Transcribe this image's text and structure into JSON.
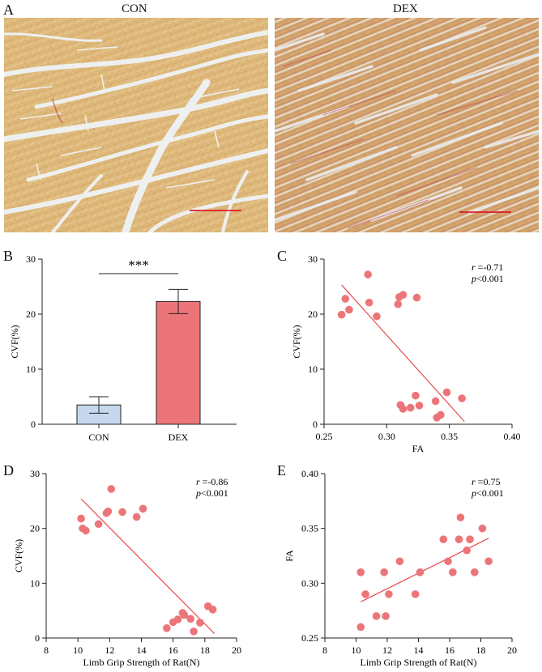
{
  "panels": {
    "a": {
      "letter": "A",
      "left_label": "CON",
      "right_label": "DEX"
    },
    "b": {
      "letter": "B"
    },
    "c": {
      "letter": "C"
    },
    "d": {
      "letter": "D"
    },
    "e": {
      "letter": "E"
    }
  },
  "colors": {
    "con_bar": "#c5d8ee",
    "dex_bar": "#ec7579",
    "point": "#ec7579",
    "fit_line": "#e84a4a",
    "scale_bar": "#d81b2a"
  },
  "chart_data": [
    {
      "id": "B",
      "type": "bar",
      "categories": [
        "CON",
        "DEX"
      ],
      "values": [
        3.5,
        22.3
      ],
      "errors": [
        1.5,
        2.2
      ],
      "ylabel": "CVF(%)",
      "xlabel": "",
      "ylim": [
        0,
        30
      ],
      "yticks": [
        0,
        10,
        20,
        30
      ],
      "significance": "***"
    },
    {
      "id": "C",
      "type": "scatter",
      "xlabel": "FA",
      "ylabel": "CVF(%)",
      "xlim": [
        0.25,
        0.4
      ],
      "ylim": [
        0,
        30
      ],
      "xticks": [
        0.25,
        0.3,
        0.35,
        0.4
      ],
      "yticks": [
        0,
        10,
        20,
        30
      ],
      "annotation_r": "=-0.71",
      "annotation_p": "<0.001",
      "points": [
        [
          0.264,
          19.9
        ],
        [
          0.267,
          22.8
        ],
        [
          0.27,
          20.8
        ],
        [
          0.285,
          27.2
        ],
        [
          0.286,
          22.1
        ],
        [
          0.292,
          19.6
        ],
        [
          0.309,
          21.8
        ],
        [
          0.31,
          23.1
        ],
        [
          0.313,
          23.5
        ],
        [
          0.324,
          23.0
        ],
        [
          0.311,
          3.5
        ],
        [
          0.313,
          2.8
        ],
        [
          0.319,
          3.0
        ],
        [
          0.323,
          5.2
        ],
        [
          0.326,
          3.4
        ],
        [
          0.339,
          4.2
        ],
        [
          0.34,
          1.2
        ],
        [
          0.343,
          1.7
        ],
        [
          0.348,
          5.8
        ],
        [
          0.36,
          4.7
        ]
      ],
      "fit": [
        [
          0.264,
          25.3
        ],
        [
          0.362,
          0.5
        ]
      ]
    },
    {
      "id": "D",
      "type": "scatter",
      "xlabel": "Limb Grip Strength of  Rat(N)",
      "ylabel": "CVF(%)",
      "xlim": [
        8,
        20
      ],
      "ylim": [
        0,
        30
      ],
      "xticks": [
        8,
        10,
        12,
        14,
        16,
        18,
        20
      ],
      "yticks": [
        0,
        10,
        20,
        30
      ],
      "annotation_r": "=-0.86",
      "annotation_p": "<0.001",
      "points": [
        [
          10.2,
          21.8
        ],
        [
          10.3,
          20.0
        ],
        [
          10.5,
          19.6
        ],
        [
          11.3,
          20.8
        ],
        [
          11.8,
          22.8
        ],
        [
          11.9,
          23.1
        ],
        [
          12.1,
          27.2
        ],
        [
          12.8,
          23.0
        ],
        [
          13.7,
          22.1
        ],
        [
          14.1,
          23.6
        ],
        [
          15.6,
          1.8
        ],
        [
          16.0,
          2.9
        ],
        [
          16.3,
          3.4
        ],
        [
          16.6,
          4.6
        ],
        [
          16.7,
          4.2
        ],
        [
          17.1,
          3.5
        ],
        [
          17.3,
          1.2
        ],
        [
          17.7,
          2.8
        ],
        [
          18.2,
          5.8
        ],
        [
          18.5,
          5.2
        ]
      ],
      "fit": [
        [
          10.2,
          25.4
        ],
        [
          18.6,
          0.8
        ]
      ]
    },
    {
      "id": "E",
      "type": "scatter",
      "xlabel": "Limb Grip Strength of  Rat(N)",
      "ylabel": "FA",
      "xlim": [
        8,
        20
      ],
      "ylim": [
        0.25,
        0.4
      ],
      "xticks": [
        8,
        10,
        12,
        14,
        16,
        18,
        20
      ],
      "yticks": [
        0.25,
        0.3,
        0.35,
        0.4
      ],
      "annotation_r": "=0.75",
      "annotation_p": "<0.001",
      "points": [
        [
          10.3,
          0.26
        ],
        [
          10.3,
          0.31
        ],
        [
          10.6,
          0.29
        ],
        [
          11.3,
          0.27
        ],
        [
          11.8,
          0.31
        ],
        [
          11.9,
          0.27
        ],
        [
          12.1,
          0.29
        ],
        [
          12.8,
          0.32
        ],
        [
          13.8,
          0.29
        ],
        [
          14.1,
          0.31
        ],
        [
          15.6,
          0.34
        ],
        [
          15.9,
          0.32
        ],
        [
          16.2,
          0.31
        ],
        [
          16.6,
          0.34
        ],
        [
          16.7,
          0.36
        ],
        [
          17.1,
          0.33
        ],
        [
          17.3,
          0.34
        ],
        [
          17.6,
          0.31
        ],
        [
          18.1,
          0.35
        ],
        [
          18.5,
          0.32
        ]
      ],
      "fit": [
        [
          10.3,
          0.283
        ],
        [
          18.5,
          0.341
        ]
      ]
    }
  ]
}
